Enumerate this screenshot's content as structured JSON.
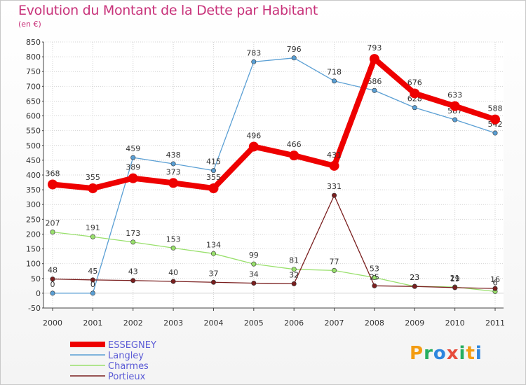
{
  "chart_data": {
    "type": "line",
    "title": "Evolution du Montant de la Dette par Habitant",
    "unit_label": "(en €)",
    "x": [
      "2000",
      "2001",
      "2002",
      "2003",
      "2004",
      "2005",
      "2006",
      "2007",
      "2008",
      "2009",
      "2010",
      "2011"
    ],
    "ylim": [
      -50,
      850
    ],
    "yticks": [
      -50,
      0,
      50,
      100,
      150,
      200,
      250,
      300,
      350,
      400,
      450,
      500,
      550,
      600,
      650,
      700,
      750,
      800,
      850
    ],
    "grid": true,
    "legend_position": "bottom-left",
    "series": [
      {
        "name": "Langley",
        "color": "#5a9fd4",
        "values": [
          0,
          0,
          459,
          438,
          415,
          783,
          796,
          718,
          686,
          628,
          587,
          542
        ]
      },
      {
        "name": "Charmes",
        "color": "#99e06c",
        "values": [
          207,
          191,
          173,
          153,
          134,
          99,
          81,
          77,
          53,
          23,
          21,
          6
        ]
      },
      {
        "name": "Portieux",
        "color": "#7a1f1f",
        "values": [
          48,
          45,
          43,
          40,
          37,
          34,
          32,
          331,
          25,
          23,
          19,
          16
        ]
      },
      {
        "name": "ESSEGNEY",
        "color": "#ee0000",
        "values": [
          368,
          355,
          389,
          373,
          355,
          496,
          466,
          431,
          793,
          676,
          633,
          588
        ]
      }
    ],
    "legend": [
      "ESSEGNEY",
      "Langley",
      "Charmes",
      "Portieux"
    ]
  },
  "logo": {
    "letters": [
      "P",
      "r",
      "o",
      "x",
      "i",
      "t",
      "i"
    ],
    "colors": [
      "#f39c12",
      "#27ae60",
      "#2e86de",
      "#e74c3c",
      "#27ae60",
      "#f39c12",
      "#2e86de"
    ]
  }
}
